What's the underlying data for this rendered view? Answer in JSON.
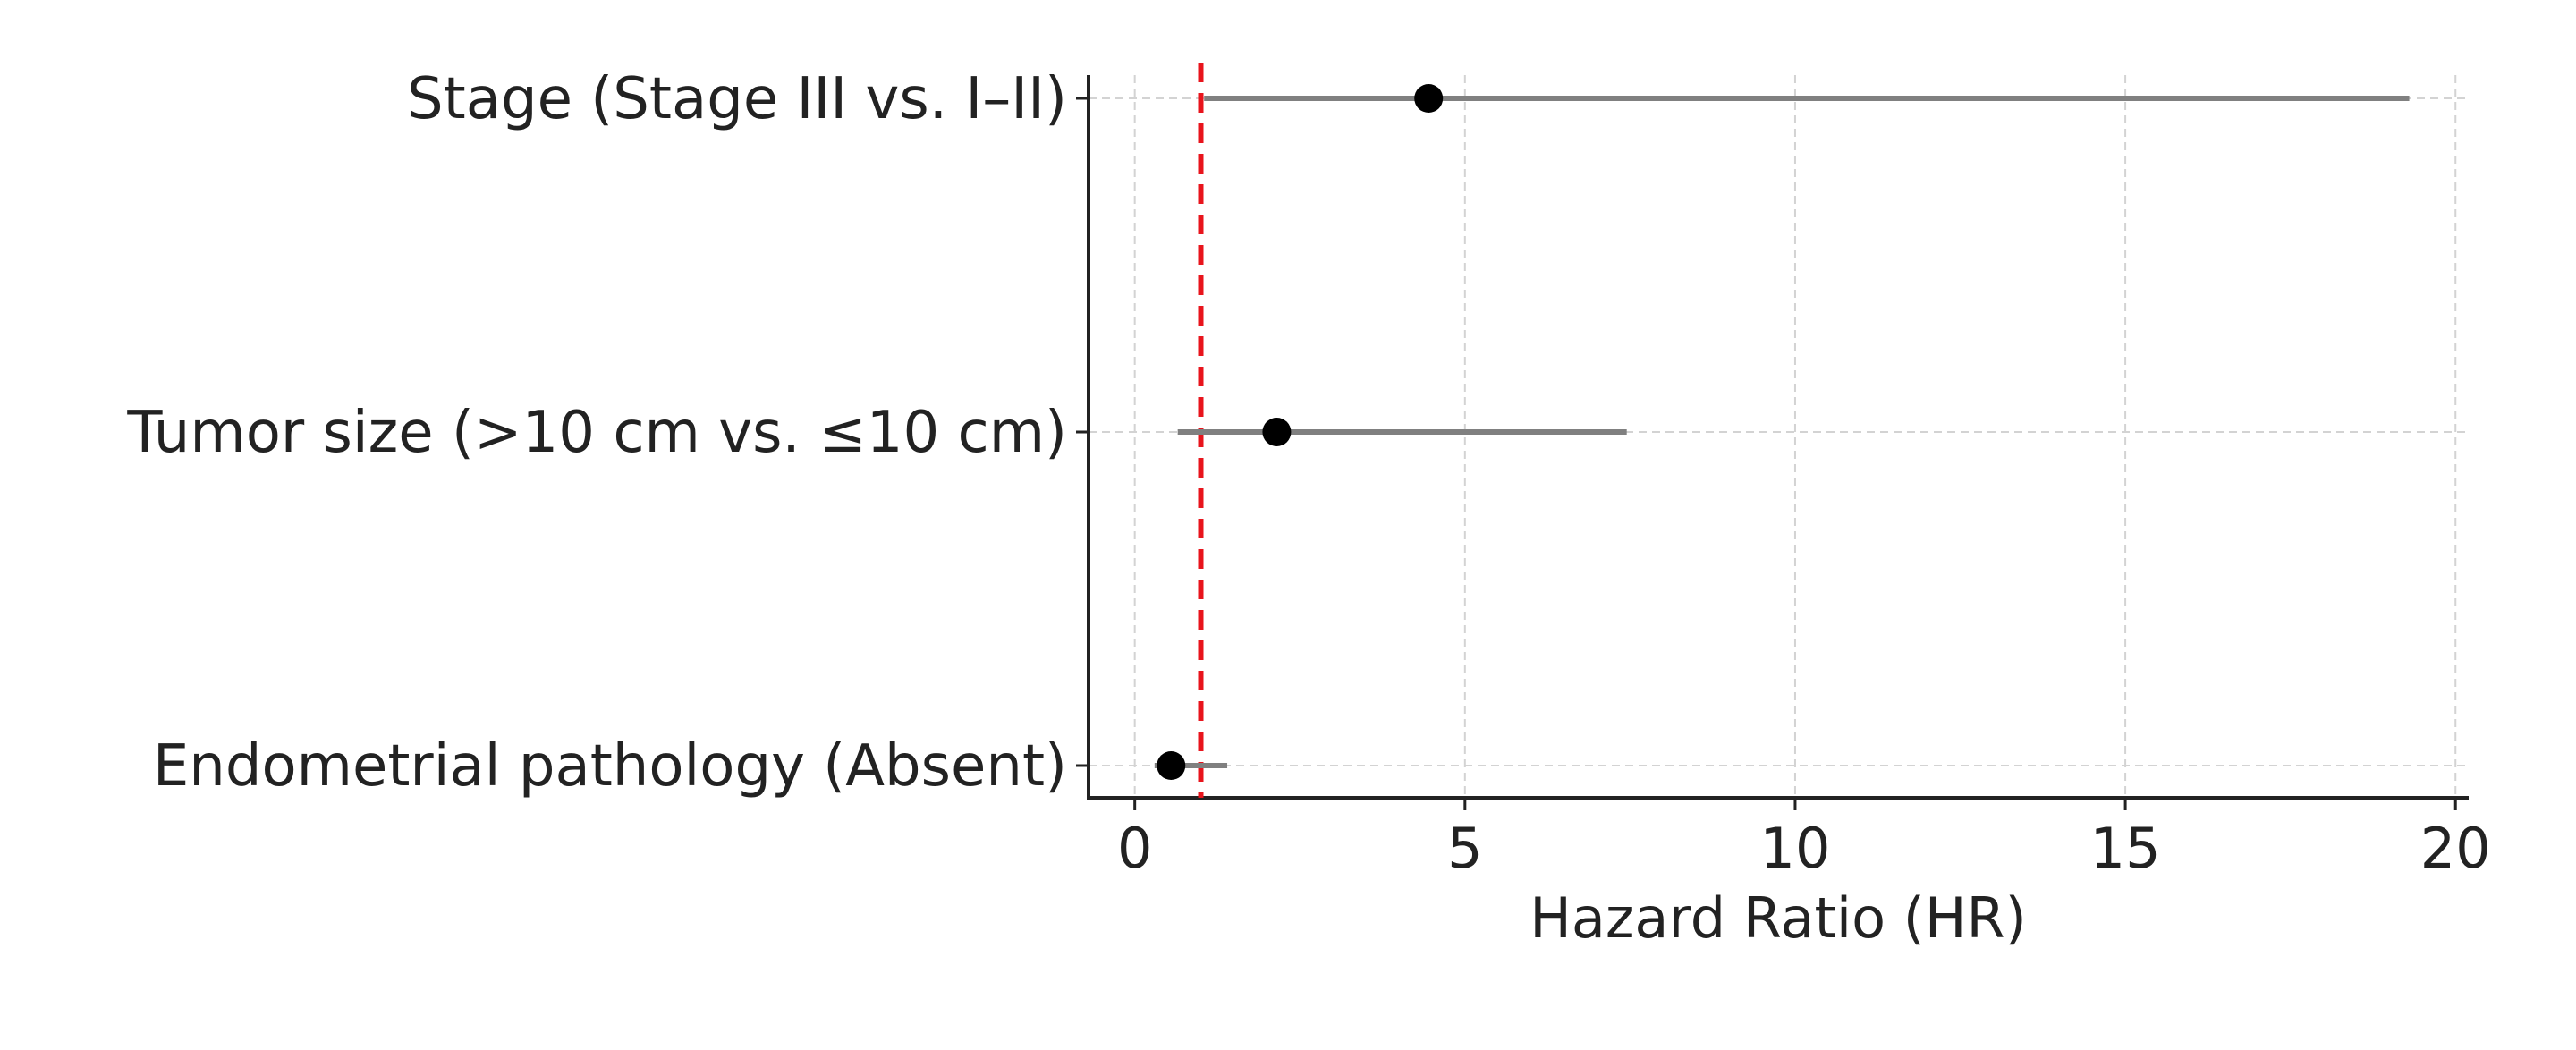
{
  "chart_data": {
    "type": "forest",
    "xlabel": "Hazard Ratio (HR)",
    "xlim": [
      -0.7,
      20.2
    ],
    "xticks": [
      0,
      5,
      10,
      15,
      20
    ],
    "grid": true,
    "reference_line": {
      "x": 1,
      "color": "#e8141c",
      "style": "dashed"
    },
    "categories": [
      "Stage (Stage III vs. I–II)",
      "Tumor size (>10 cm vs. ≤10 cm)",
      "Endometrial pathology (Absent)"
    ],
    "hr": [
      4.45,
      2.15,
      0.55
    ],
    "ci_lower": [
      1.05,
      0.65,
      0.3
    ],
    "ci_upper": [
      19.3,
      7.45,
      1.4
    ],
    "colors": {
      "point": "#000000",
      "interval": "#808080",
      "grid": "#d3d3d3",
      "axis": "#222222"
    }
  }
}
